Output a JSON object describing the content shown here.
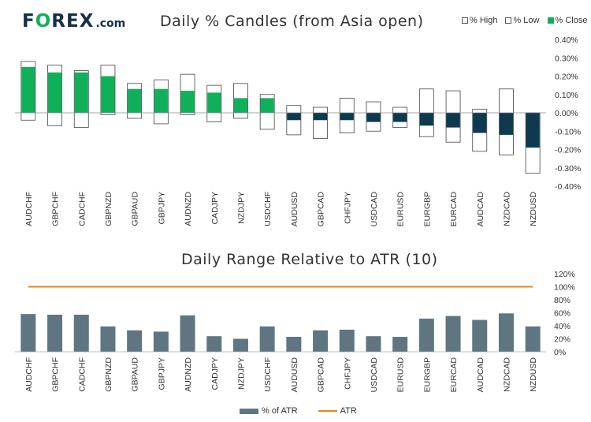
{
  "logo": {
    "part1": "F",
    "part2": "REX",
    "part3": ".com"
  },
  "titles": {
    "top": "Daily % Candles (from Asia open)",
    "bottom": "Daily Range Relative to ATR (10)"
  },
  "colors": {
    "up": "#10b05a",
    "down": "#0d3a4e",
    "atrBar": "#5f7682",
    "atrLine": "#e8841e",
    "axis": "#333333"
  },
  "legend_top": [
    "% High",
    "% Low",
    "% Close"
  ],
  "legend_bottom": [
    "% of ATR",
    "ATR"
  ],
  "chart_data": [
    {
      "type": "bar",
      "title": "Daily % Candles (from Asia open)",
      "categories": [
        "AUDCHF",
        "GBPCHF",
        "CADCHF",
        "GBPNZD",
        "GBPAUD",
        "GBPJPY",
        "AUDNZD",
        "CADJPY",
        "NZDJPY",
        "USDCHF",
        "AUDUSD",
        "GBPCAD",
        "CHFJPY",
        "USDCAD",
        "EURUSD",
        "EURGBP",
        "EURCAD",
        "AUDCAD",
        "NZDCAD",
        "NZDUSD"
      ],
      "series": [
        {
          "name": "% High",
          "values": [
            0.28,
            0.26,
            0.23,
            0.26,
            0.16,
            0.18,
            0.21,
            0.15,
            0.16,
            0.1,
            0.04,
            0.03,
            0.08,
            0.06,
            0.03,
            0.13,
            0.12,
            0.02,
            0.13,
            0.0
          ]
        },
        {
          "name": "% Low",
          "values": [
            -0.04,
            -0.07,
            -0.08,
            -0.01,
            -0.03,
            -0.06,
            -0.01,
            -0.05,
            -0.03,
            -0.09,
            -0.12,
            -0.14,
            -0.11,
            -0.1,
            -0.08,
            -0.13,
            -0.16,
            -0.21,
            -0.23,
            -0.33
          ]
        },
        {
          "name": "% Close",
          "values": [
            0.25,
            0.22,
            0.22,
            0.2,
            0.13,
            0.13,
            0.12,
            0.11,
            0.08,
            0.08,
            -0.04,
            -0.04,
            -0.04,
            -0.05,
            -0.05,
            -0.07,
            -0.08,
            -0.11,
            -0.12,
            -0.19
          ]
        }
      ],
      "ylim": [
        -0.4,
        0.4
      ],
      "yticks": [
        "0.40%",
        "0.30%",
        "0.20%",
        "0.10%",
        "0.00%",
        "-0.10%",
        "-0.20%",
        "-0.30%",
        "-0.40%"
      ],
      "legend": "top-right",
      "grid": false
    },
    {
      "type": "bar",
      "title": "Daily Range Relative to ATR (10)",
      "categories": [
        "AUDCHF",
        "GBPCHF",
        "CADCHF",
        "GBPNZD",
        "GBPAUD",
        "GBPJPY",
        "AUDNZD",
        "CADJPY",
        "NZDJPY",
        "USDCHF",
        "AUDUSD",
        "GBPCAD",
        "CHFJPY",
        "USDCAD",
        "EURUSD",
        "EURGBP",
        "EURCAD",
        "AUDCAD",
        "NZDCAD",
        "NZDUSD"
      ],
      "series": [
        {
          "name": "% of ATR",
          "values": [
            58,
            57,
            57,
            39,
            33,
            31,
            56,
            24,
            20,
            39,
            23,
            33,
            34,
            24,
            23,
            51,
            55,
            49,
            59,
            39
          ]
        },
        {
          "name": "ATR",
          "values": [
            100,
            100,
            100,
            100,
            100,
            100,
            100,
            100,
            100,
            100,
            100,
            100,
            100,
            100,
            100,
            100,
            100,
            100,
            100,
            100
          ]
        }
      ],
      "ylim": [
        0,
        120
      ],
      "yticks": [
        "120%",
        "100%",
        "80%",
        "60%",
        "40%",
        "20%",
        "0%"
      ],
      "legend": "bottom",
      "grid": false
    }
  ]
}
